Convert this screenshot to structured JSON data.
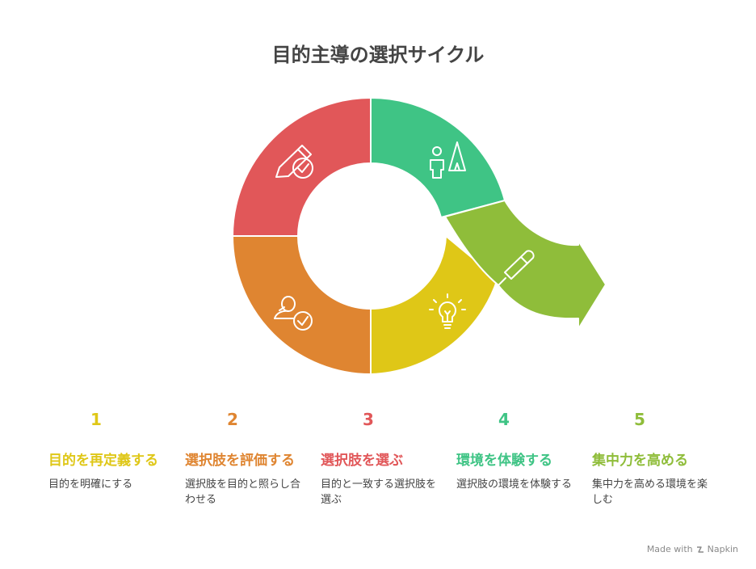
{
  "title": "目的主導の選択サイクル",
  "segments": [
    {
      "color": "#e15759",
      "icon": "pencil-check-icon"
    },
    {
      "color": "#3fc485",
      "icon": "person-tent-icon"
    },
    {
      "color": "#8fbd3a",
      "icon": "pen-icon"
    },
    {
      "color": "#dfc717",
      "icon": "lightbulb-icon"
    },
    {
      "color": "#df8531",
      "icon": "person-check-icon"
    }
  ],
  "steps": [
    {
      "num": "1",
      "heading": "目的を再定義する",
      "desc": "目的を明確にする",
      "color": "#dfc717"
    },
    {
      "num": "2",
      "heading": "選択肢を評価する",
      "desc": "選択肢を目的と照らし合わせる",
      "color": "#df8531"
    },
    {
      "num": "3",
      "heading": "選択肢を選ぶ",
      "desc": "目的と一致する選択肢を選ぶ",
      "color": "#e15759"
    },
    {
      "num": "4",
      "heading": "環境を体験する",
      "desc": "選択肢の環境を体験する",
      "color": "#3fc485"
    },
    {
      "num": "5",
      "heading": "集中力を高める",
      "desc": "集中力を高める環境を楽しむ",
      "color": "#8fbd3a"
    }
  ],
  "brand": {
    "made_with": "Made with",
    "name": "Napkin"
  }
}
